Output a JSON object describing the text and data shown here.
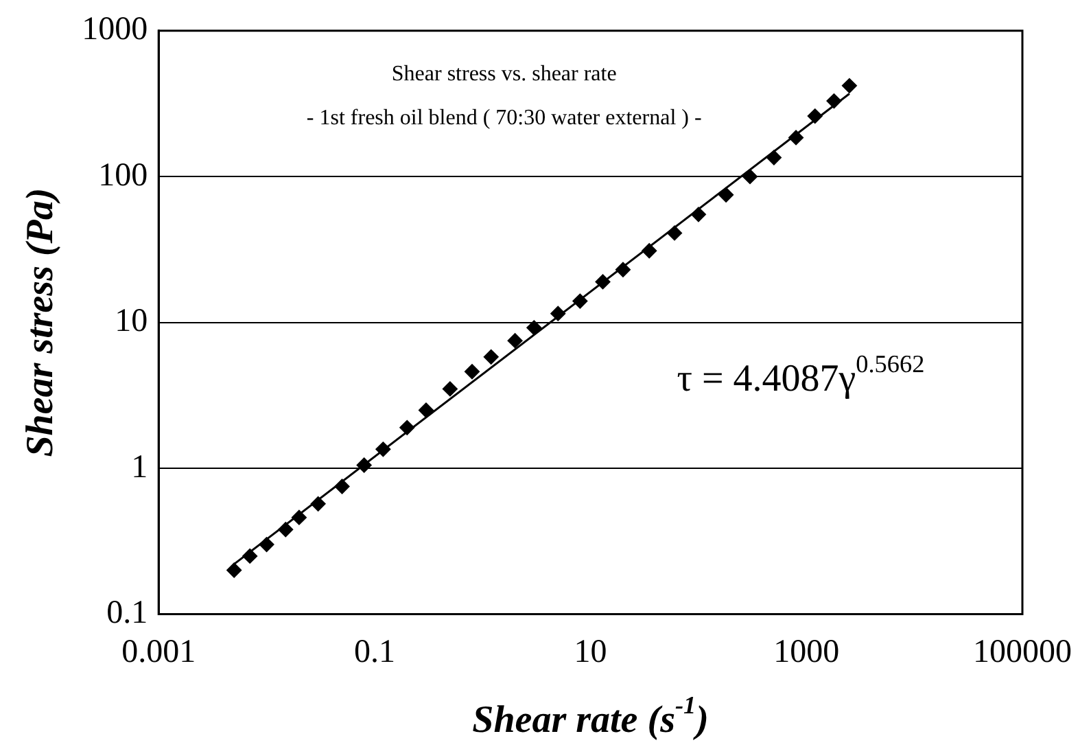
{
  "chart_data": {
    "type": "scatter",
    "xlabel": "Shear rate (s$^{-1}$)",
    "ylabel": "Shear stress (Pa)",
    "log": "xy",
    "grid": "y",
    "legend": false,
    "marker": "diamond",
    "xlim": [
      0.001,
      100000
    ],
    "xticks": [
      0.001,
      0.1,
      10,
      1000,
      100000
    ],
    "ylim": [
      0.1,
      1000
    ],
    "yticks": [
      0.1,
      1,
      10,
      100,
      1000
    ],
    "annotations": [
      "Shear stress vs. shear rate",
      "- 1st fresh oil blend ( 70:30 water external ) -",
      "τ = 4.4087γ$^{0.5662}$"
    ],
    "series": [
      {
        "color": "#000000",
        "x": [
          0.005,
          0.007,
          0.01,
          0.015,
          0.02,
          0.03,
          0.05,
          0.08,
          0.12,
          0.2,
          0.3,
          0.5,
          0.8,
          1.2,
          2,
          3,
          5,
          8,
          13,
          20,
          35,
          60,
          100,
          180,
          300,
          500,
          800,
          1200,
          1800,
          2500
        ],
        "values": [
          0.2,
          0.25,
          0.3,
          0.38,
          0.46,
          0.57,
          0.75,
          1.05,
          1.35,
          1.9,
          2.5,
          3.5,
          4.6,
          5.8,
          7.5,
          9.2,
          11.5,
          14,
          19,
          23,
          31,
          41,
          55,
          75,
          100,
          135,
          185,
          260,
          330,
          420
        ]
      },
      {
        "type": "line",
        "color": "#000000",
        "marker": "none",
        "line_style": "solid",
        "x": [
          0.005,
          2500
        ],
        "values": [
          0.22,
          370
        ]
      }
    ]
  }
}
